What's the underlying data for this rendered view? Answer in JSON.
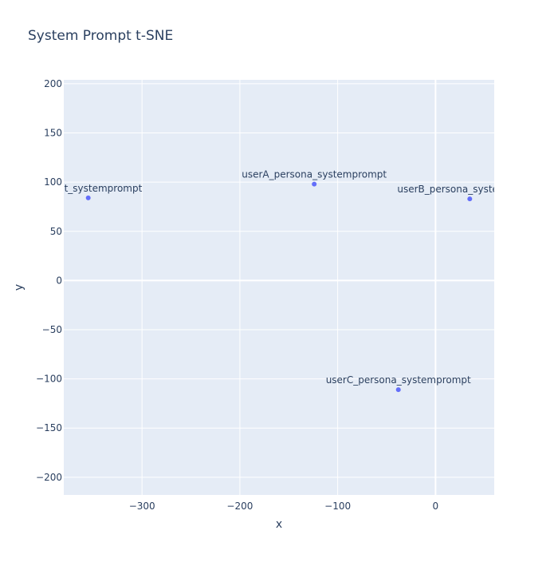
{
  "chart_data": {
    "type": "scatter",
    "title": "System Prompt t-SNE",
    "xlabel": "x",
    "ylabel": "y",
    "xlim": [
      -380,
      60
    ],
    "ylim": [
      -218,
      204
    ],
    "x_ticks": [
      -300,
      -200,
      -100,
      0
    ],
    "y_ticks": [
      -200,
      -150,
      -100,
      -50,
      0,
      50,
      100,
      150,
      200
    ],
    "x_tick_labels": [
      "−300",
      "−200",
      "−100",
      "0"
    ],
    "y_tick_labels": [
      "−200",
      "−150",
      "−100",
      "−50",
      "0",
      "50",
      "100",
      "150",
      "200"
    ],
    "grid": true,
    "colors": {
      "plot_background": "#e5ecf6",
      "marker": "#636efa",
      "grid": "#ffffff",
      "text": "#2a3f5f"
    },
    "points": [
      {
        "label": "default_systemprompt",
        "x": -355,
        "y": 84
      },
      {
        "label": "userA_persona_systemprompt",
        "x": -124,
        "y": 98
      },
      {
        "label": "userB_persona_systemprompt",
        "x": 35,
        "y": 83
      },
      {
        "label": "userC_persona_systemprompt",
        "x": -38,
        "y": -111
      }
    ]
  }
}
